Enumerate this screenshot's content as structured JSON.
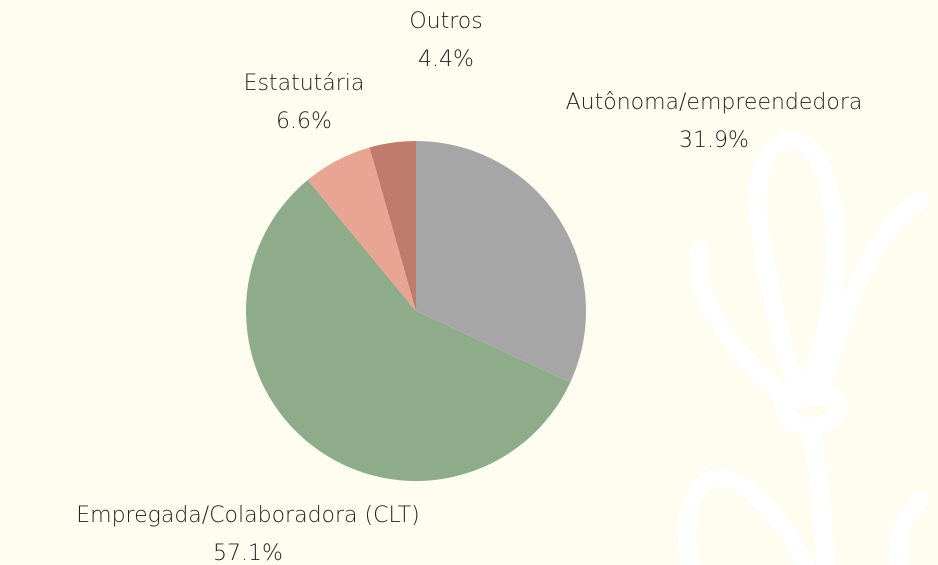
{
  "chart_data": {
    "type": "pie",
    "categories": [
      "Autônoma/empreendedora",
      "Empregada/Colaboradora (CLT)",
      "Estatutária",
      "Outros"
    ],
    "values": [
      31.9,
      57.1,
      6.6,
      4.4
    ],
    "value_labels": [
      "31.9%",
      "57.1%",
      "6.6%",
      "4.4%"
    ],
    "colors": [
      "#a6a6a6",
      "#8fac8a",
      "#e8a593",
      "#bf7b6b"
    ]
  }
}
